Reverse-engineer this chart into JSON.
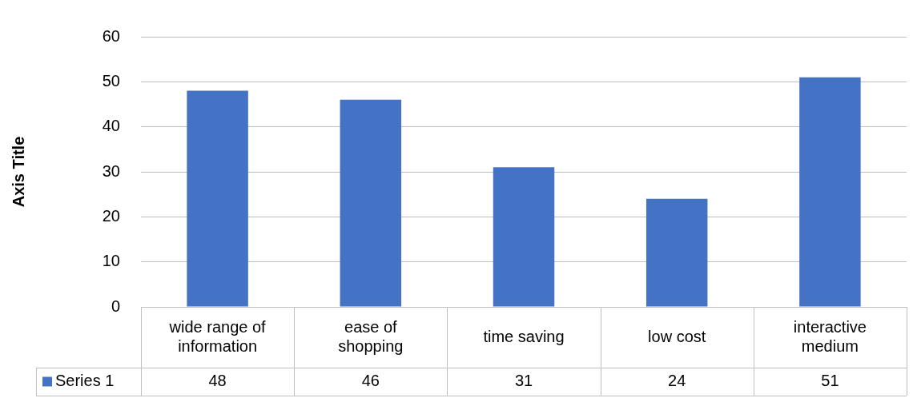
{
  "chart_data": {
    "type": "bar",
    "ylabel": "Axis Title",
    "categories": [
      "wide range of information",
      "ease of shopping",
      "time saving",
      "low cost",
      "interactive medium"
    ],
    "series": [
      {
        "name": "Series 1",
        "color": "#4472c4",
        "values": [
          48,
          46,
          31,
          24,
          51
        ]
      }
    ],
    "ylim": [
      0,
      60
    ],
    "yticks": [
      0,
      10,
      20,
      30,
      40,
      50,
      60
    ],
    "grid": "y",
    "legend": "bottom",
    "data_labels": true
  }
}
